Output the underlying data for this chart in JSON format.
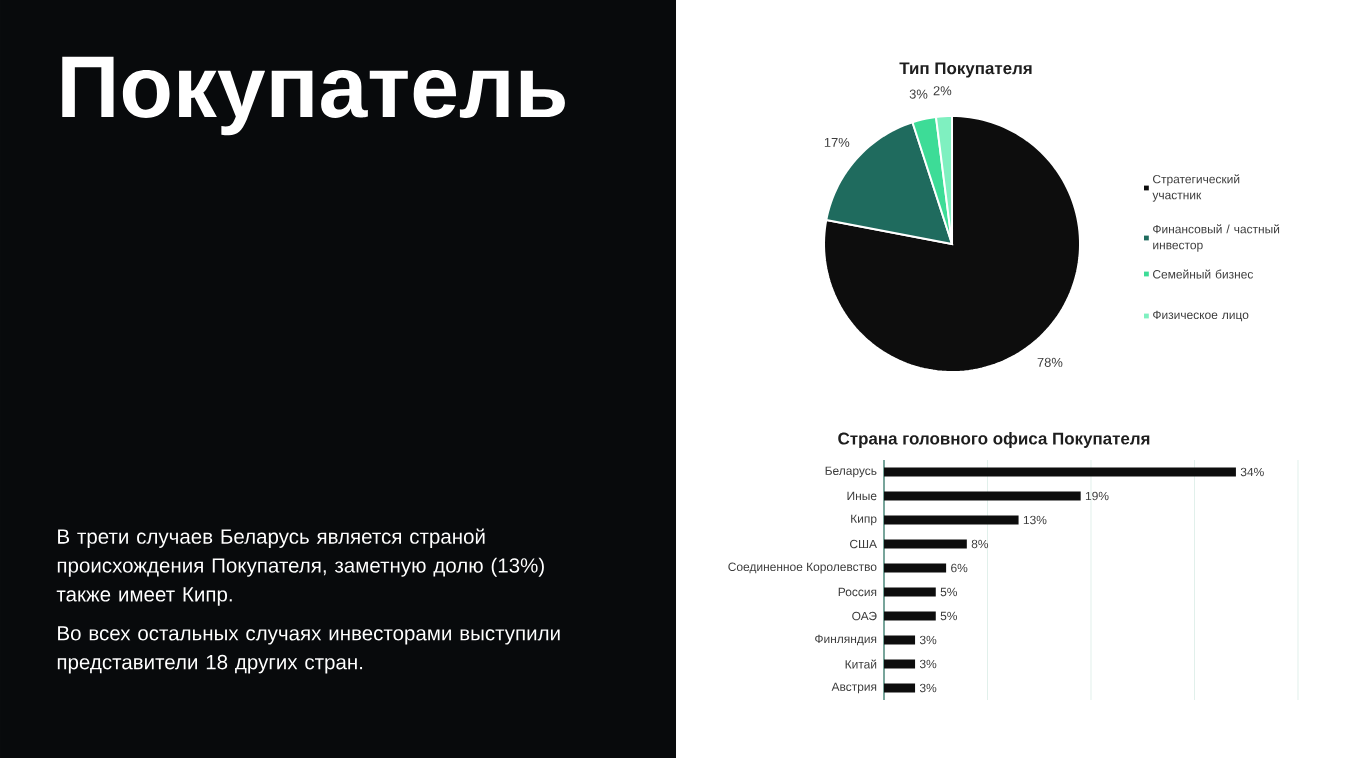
{
  "chart_data": [
    {
      "type": "other",
      "title": "Покупатель",
      "annotations": [
        "В трети случаев Беларусь является страной происхождения Покупателя, заметную долю (13%) также имеет Кипр.",
        "Во всех остальных случаях инвесторами выступили представители 18 других стран."
      ]
    },
    {
      "type": "pie",
      "title": "Тип Покупателя",
      "categories": [
        "Стратегический участник",
        "Финансовый / частный инвестор",
        "Семейный бизнес",
        "Физическое лицо"
      ],
      "values": [
        78,
        17,
        3,
        2
      ],
      "colors": [
        "#0d0d0d",
        "#1f6b5e",
        "#3ddc97",
        "#7ff0c0"
      ],
      "value_labels": [
        "78%",
        "17%",
        "3%",
        "2%"
      ],
      "legend": "right"
    },
    {
      "type": "bar",
      "orientation": "horizontal",
      "title": "Страна головного офиса Покупателя",
      "categories": [
        "Беларусь",
        "Иные",
        "Кипр",
        "США",
        "Соединенное Королевство",
        "Россия",
        "ОАЭ",
        "Финляндия",
        "Китай",
        "Австрия"
      ],
      "values": [
        34,
        19,
        13,
        8,
        6,
        5,
        5,
        3,
        3,
        3
      ],
      "value_labels": [
        "34%",
        "19%",
        "13%",
        "8%",
        "6%",
        "5%",
        "5%",
        "3%",
        "3%",
        "3%"
      ],
      "color": "#0d0d0d",
      "xlim": [
        0,
        40
      ],
      "xticks": [
        {
          "value": 10,
          "label": null
        },
        {
          "value": 20,
          "label": null
        },
        {
          "value": 30,
          "label": null
        },
        {
          "value": 40,
          "label": null
        }
      ],
      "grid": "x",
      "tick_labels": "y"
    }
  ]
}
